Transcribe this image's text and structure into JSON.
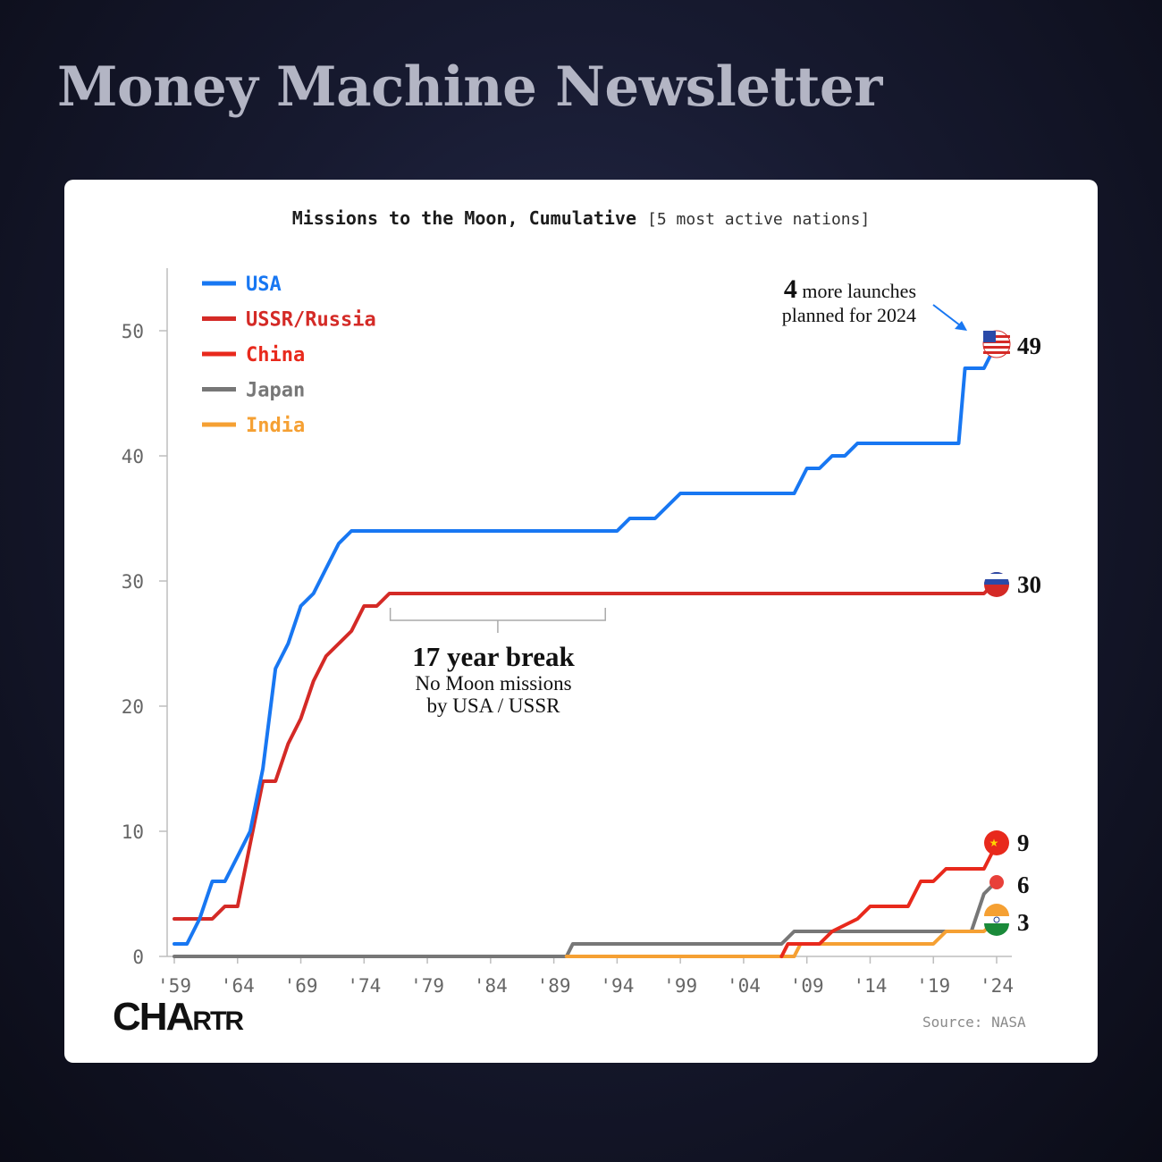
{
  "header": {
    "brand": "Money Machine Newsletter"
  },
  "chart_data": {
    "type": "line",
    "title": "Missions to the Moon, Cumulative",
    "subtitle": "[5 most active nations]",
    "xlabel": "",
    "ylabel": "",
    "xlim": [
      1959,
      2024
    ],
    "ylim": [
      0,
      55
    ],
    "x_ticks": [
      "'59",
      "'64",
      "'69",
      "'74",
      "'79",
      "'84",
      "'89",
      "'94",
      "'99",
      "'04",
      "'09",
      "'14",
      "'19",
      "'24"
    ],
    "y_ticks": [
      0,
      10,
      20,
      30,
      40,
      50
    ],
    "grid": false,
    "legend_position": "top-left",
    "series": [
      {
        "name": "USA",
        "color": "#1877f2",
        "end_label": "49",
        "points": [
          [
            1959,
            1
          ],
          [
            1960,
            1
          ],
          [
            1961,
            3
          ],
          [
            1962,
            6
          ],
          [
            1963,
            6
          ],
          [
            1964,
            8
          ],
          [
            1965,
            10
          ],
          [
            1966,
            15
          ],
          [
            1967,
            23
          ],
          [
            1968,
            25
          ],
          [
            1969,
            28
          ],
          [
            1970,
            29
          ],
          [
            1971,
            31
          ],
          [
            1972,
            33
          ],
          [
            1973,
            34
          ],
          [
            1994,
            34
          ],
          [
            1995,
            35
          ],
          [
            1997,
            35
          ],
          [
            1998,
            36
          ],
          [
            1999,
            37
          ],
          [
            2008,
            37
          ],
          [
            2009,
            39
          ],
          [
            2010,
            39
          ],
          [
            2011,
            40
          ],
          [
            2012,
            40
          ],
          [
            2013,
            41
          ],
          [
            2021,
            41
          ],
          [
            2021.5,
            47
          ],
          [
            2023,
            47
          ],
          [
            2024,
            49
          ]
        ]
      },
      {
        "name": "USSR/Russia",
        "color": "#d42a26",
        "end_label": "30",
        "points": [
          [
            1959,
            3
          ],
          [
            1962,
            3
          ],
          [
            1963,
            4
          ],
          [
            1964,
            4
          ],
          [
            1965,
            9
          ],
          [
            1966,
            14
          ],
          [
            1967,
            14
          ],
          [
            1968,
            17
          ],
          [
            1969,
            19
          ],
          [
            1970,
            22
          ],
          [
            1971,
            24
          ],
          [
            1972,
            25
          ],
          [
            1973,
            26
          ],
          [
            1974,
            28
          ],
          [
            1975,
            28
          ],
          [
            1976,
            29
          ],
          [
            2023,
            29
          ],
          [
            2024,
            30
          ]
        ]
      },
      {
        "name": "China",
        "color": "#e8291c",
        "end_label": "9",
        "points": [
          [
            2007,
            0
          ],
          [
            2007.5,
            1
          ],
          [
            2010,
            1
          ],
          [
            2011,
            2
          ],
          [
            2013,
            3
          ],
          [
            2014,
            4
          ],
          [
            2017,
            4
          ],
          [
            2018,
            6
          ],
          [
            2019,
            6
          ],
          [
            2020,
            7
          ],
          [
            2023,
            7
          ],
          [
            2024,
            9
          ]
        ]
      },
      {
        "name": "Japan",
        "color": "#777777",
        "end_label": "6",
        "points": [
          [
            1959,
            0
          ],
          [
            1990,
            0
          ],
          [
            1990.5,
            1
          ],
          [
            2007,
            1
          ],
          [
            2008,
            2
          ],
          [
            2022,
            2
          ],
          [
            2023,
            5
          ],
          [
            2024,
            6
          ]
        ]
      },
      {
        "name": "India",
        "color": "#f5a033",
        "end_label": "3",
        "points": [
          [
            1990,
            0
          ],
          [
            2008,
            0
          ],
          [
            2008.5,
            1
          ],
          [
            2019,
            1
          ],
          [
            2020,
            2
          ],
          [
            2023,
            2
          ],
          [
            2024,
            3
          ]
        ]
      }
    ],
    "annotations": {
      "launches_number": "4",
      "launches_text_1": "more launches",
      "launches_text_2": "planned for 2024",
      "break_title": "17 year break",
      "break_text_1": "No Moon missions",
      "break_text_2": "by USA / USSR",
      "break_range": [
        1976,
        1993
      ]
    },
    "source": "Source: NASA"
  },
  "footer": {
    "logo_big": "CHA",
    "logo_small": "RTR"
  }
}
